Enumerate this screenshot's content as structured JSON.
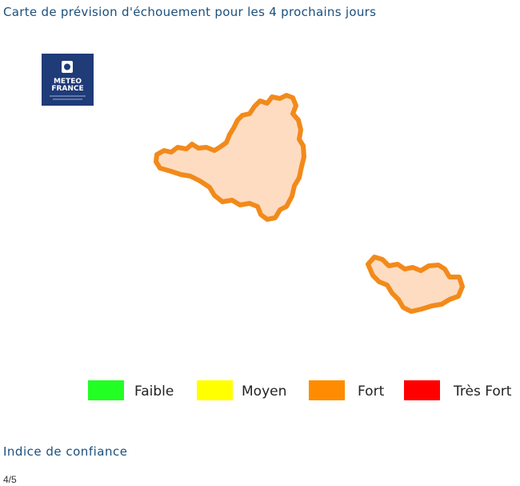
{
  "header": {
    "title": "Carte de prévision d'échouement pour les 4 prochains jours"
  },
  "logo": {
    "line1": "METEO",
    "line2": "FRANCE"
  },
  "legend": {
    "items": [
      {
        "label": "Faible",
        "color": "#22ff22"
      },
      {
        "label": "Moyen",
        "color": "#ffff00"
      },
      {
        "label": "Fort",
        "color": "#ff8c00"
      },
      {
        "label": "Très Fort",
        "color": "#ff0000"
      }
    ]
  },
  "confidence": {
    "heading": "Indice de confiance",
    "value": "4/5"
  }
}
